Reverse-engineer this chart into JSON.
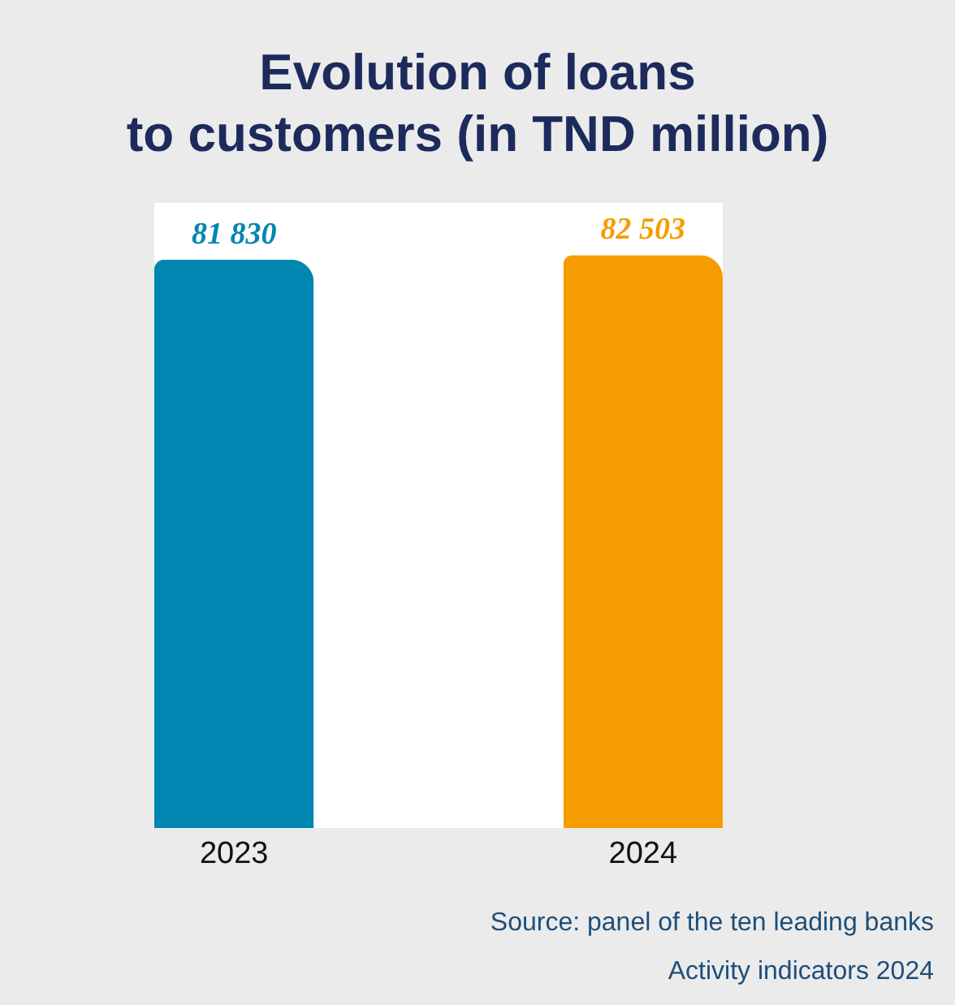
{
  "chart_data": {
    "type": "bar",
    "title": "Evolution of loans to customers (in TND million)",
    "categories": [
      "2023",
      "2024"
    ],
    "values": [
      81830,
      82503
    ],
    "colors": [
      "#0086b0",
      "#f59d00"
    ],
    "value_labels": [
      "81 830",
      "82 503"
    ],
    "tick_labels": "x",
    "annotations": [
      "Source: panel of the ten leading banks",
      "Activity indicators 2024"
    ]
  }
}
